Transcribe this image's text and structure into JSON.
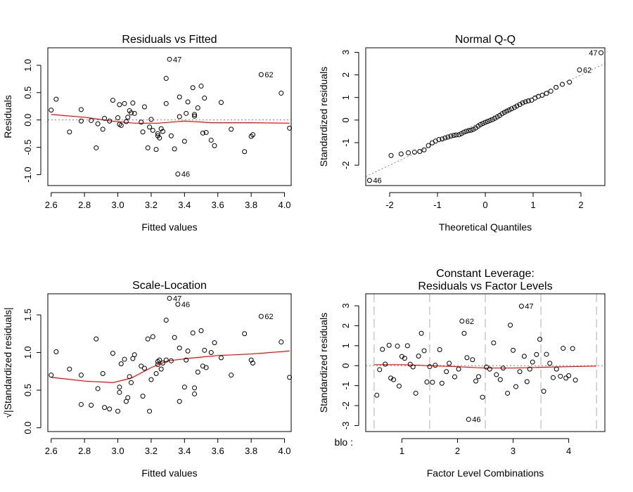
{
  "colors": {
    "smooth": "#ff0000",
    "reference": "#808080",
    "separator": "#c8c8c8",
    "points": "#000000"
  },
  "chart_data": [
    {
      "panel": "residuals-vs-fitted",
      "type": "scatter",
      "title": "Residuals vs Fitted",
      "title2": "",
      "xlabel": "Fitted values",
      "ylabel": "Residuals",
      "xlim": [
        2.58,
        4.04
      ],
      "ylim": [
        -1.2,
        1.32
      ],
      "xticks": [
        2.6,
        2.8,
        3.0,
        3.2,
        3.4,
        3.6,
        3.8,
        4.0
      ],
      "xtick_labels": [
        "2.6",
        "2.8",
        "3.0",
        "3.2",
        "3.4",
        "3.6",
        "3.8",
        "4.0"
      ],
      "yticks": [
        -1.0,
        -0.5,
        0.0,
        0.5,
        1.0
      ],
      "ytick_labels": [
        "-1.0",
        "-0.5",
        "0.0",
        "0.5",
        "1.0"
      ],
      "reference_line": {
        "axis": "y",
        "value": 0
      },
      "points": [
        [
          2.6,
          0.18
        ],
        [
          2.63,
          0.38
        ],
        [
          2.71,
          -0.22
        ],
        [
          2.78,
          0.19
        ],
        [
          2.78,
          -0.02
        ],
        [
          2.84,
          -0.01
        ],
        [
          2.87,
          -0.51
        ],
        [
          2.88,
          -0.07
        ],
        [
          2.91,
          -0.17
        ],
        [
          2.92,
          0.03
        ],
        [
          2.95,
          -0.02
        ],
        [
          2.97,
          0.36
        ],
        [
          3.0,
          0.04
        ],
        [
          3.01,
          0.28
        ],
        [
          3.01,
          -0.08
        ],
        [
          3.02,
          -0.1
        ],
        [
          3.04,
          0.3
        ],
        [
          3.05,
          -0.03
        ],
        [
          3.06,
          0.05
        ],
        [
          3.07,
          0.17
        ],
        [
          3.08,
          0.13
        ],
        [
          3.09,
          0.31
        ],
        [
          3.1,
          0.12
        ],
        [
          3.14,
          -0.04
        ],
        [
          3.15,
          -0.22
        ],
        [
          3.16,
          0.24
        ],
        [
          3.18,
          -0.51
        ],
        [
          3.19,
          -0.13
        ],
        [
          3.2,
          0.01
        ],
        [
          3.21,
          -0.19
        ],
        [
          3.23,
          -0.54
        ],
        [
          3.24,
          -0.25
        ],
        [
          3.24,
          -0.29
        ],
        [
          3.25,
          -0.33
        ],
        [
          3.26,
          -0.16
        ],
        [
          3.27,
          -0.21
        ],
        [
          3.29,
          0.3
        ],
        [
          3.29,
          0.76
        ],
        [
          3.31,
          1.11
        ],
        [
          3.32,
          -0.29
        ],
        [
          3.34,
          -0.53
        ],
        [
          3.36,
          -0.99
        ],
        [
          3.37,
          0.06
        ],
        [
          3.37,
          0.42
        ],
        [
          3.4,
          -0.39
        ],
        [
          3.41,
          0.12
        ],
        [
          3.42,
          0.33
        ],
        [
          3.45,
          0.59
        ],
        [
          3.46,
          0.07
        ],
        [
          3.46,
          0.1
        ],
        [
          3.48,
          0.22
        ],
        [
          3.5,
          0.62
        ],
        [
          3.51,
          -0.24
        ],
        [
          3.52,
          0.4
        ],
        [
          3.53,
          -0.23
        ],
        [
          3.56,
          -0.37
        ],
        [
          3.58,
          -0.47
        ],
        [
          3.62,
          0.32
        ],
        [
          3.68,
          -0.17
        ],
        [
          3.76,
          -0.58
        ],
        [
          3.8,
          -0.3
        ],
        [
          3.81,
          -0.27
        ],
        [
          3.86,
          0.83
        ],
        [
          3.98,
          0.49
        ],
        [
          4.03,
          -0.15
        ]
      ],
      "smooth": [
        [
          2.6,
          0.1
        ],
        [
          2.8,
          0.05
        ],
        [
          2.96,
          -0.02
        ],
        [
          3.1,
          -0.06
        ],
        [
          3.24,
          -0.06
        ],
        [
          3.4,
          -0.02
        ],
        [
          3.56,
          -0.05
        ],
        [
          3.8,
          -0.05
        ],
        [
          4.03,
          -0.06
        ]
      ],
      "labels": [
        {
          "text": "47",
          "x": 3.31,
          "y": 1.11
        },
        {
          "text": "62",
          "x": 3.86,
          "y": 0.83
        },
        {
          "text": "46",
          "x": 3.36,
          "y": -0.99
        }
      ]
    },
    {
      "panel": "normal-qq",
      "type": "scatter",
      "title": "Normal Q-Q",
      "title2": "",
      "xlabel": "Theoretical Quantiles",
      "ylabel": "Standardized residuals",
      "xlim": [
        -2.5,
        2.5
      ],
      "ylim": [
        -2.9,
        3.2
      ],
      "xticks": [
        -2,
        -1,
        0,
        1,
        2
      ],
      "xtick_labels": [
        "-2",
        "-1",
        "0",
        "1",
        "2"
      ],
      "yticks": [
        -2,
        -1,
        0,
        1,
        2,
        3
      ],
      "ytick_labels": [
        "-2",
        "-1",
        "0",
        "1",
        "2",
        "3"
      ],
      "reference_line": {
        "axis": "diag",
        "slope": 1.0,
        "intercept": 0
      },
      "points": [
        [
          -2.42,
          -2.67
        ],
        [
          -1.97,
          -1.57
        ],
        [
          -1.76,
          -1.5
        ],
        [
          -1.61,
          -1.45
        ],
        [
          -1.48,
          -1.42
        ],
        [
          -1.37,
          -1.39
        ],
        [
          -1.28,
          -1.32
        ],
        [
          -1.19,
          -1.13
        ],
        [
          -1.11,
          -1.01
        ],
        [
          -1.04,
          -0.93
        ],
        [
          -0.97,
          -0.86
        ],
        [
          -0.9,
          -0.84
        ],
        [
          -0.84,
          -0.79
        ],
        [
          -0.78,
          -0.75
        ],
        [
          -0.72,
          -0.71
        ],
        [
          -0.66,
          -0.68
        ],
        [
          -0.61,
          -0.66
        ],
        [
          -0.55,
          -0.65
        ],
        [
          -0.5,
          -0.6
        ],
        [
          -0.45,
          -0.54
        ],
        [
          -0.4,
          -0.5
        ],
        [
          -0.35,
          -0.47
        ],
        [
          -0.3,
          -0.45
        ],
        [
          -0.25,
          -0.41
        ],
        [
          -0.2,
          -0.35
        ],
        [
          -0.15,
          -0.27
        ],
        [
          -0.1,
          -0.2
        ],
        [
          -0.05,
          -0.15
        ],
        [
          0.0,
          -0.1
        ],
        [
          0.05,
          -0.06
        ],
        [
          0.1,
          -0.02
        ],
        [
          0.15,
          0.02
        ],
        [
          0.2,
          0.08
        ],
        [
          0.25,
          0.14
        ],
        [
          0.3,
          0.2
        ],
        [
          0.35,
          0.28
        ],
        [
          0.4,
          0.34
        ],
        [
          0.45,
          0.4
        ],
        [
          0.5,
          0.45
        ],
        [
          0.55,
          0.5
        ],
        [
          0.61,
          0.56
        ],
        [
          0.66,
          0.62
        ],
        [
          0.72,
          0.69
        ],
        [
          0.78,
          0.76
        ],
        [
          0.84,
          0.81
        ],
        [
          0.9,
          0.85
        ],
        [
          0.97,
          0.88
        ],
        [
          1.04,
          0.98
        ],
        [
          1.11,
          1.05
        ],
        [
          1.19,
          1.1
        ],
        [
          1.28,
          1.18
        ],
        [
          1.37,
          1.28
        ],
        [
          1.48,
          1.45
        ],
        [
          1.61,
          1.58
        ],
        [
          1.76,
          1.68
        ],
        [
          1.97,
          2.22
        ],
        [
          2.42,
          2.98
        ]
      ],
      "labels": [
        {
          "text": "47",
          "x": 2.42,
          "y": 2.98
        },
        {
          "text": "62",
          "x": 1.97,
          "y": 2.22
        },
        {
          "text": "46",
          "x": -2.42,
          "y": -2.67
        }
      ]
    },
    {
      "panel": "scale-location",
      "type": "scatter",
      "title": "Scale-Location",
      "title2": "",
      "xlabel": "Fitted values",
      "ylabel": "√|Standardized residuals|",
      "xlim": [
        2.58,
        4.04
      ],
      "ylim": [
        -0.05,
        1.78
      ],
      "xticks": [
        2.6,
        2.8,
        3.0,
        3.2,
        3.4,
        3.6,
        3.8,
        4.0
      ],
      "xtick_labels": [
        "2.6",
        "2.8",
        "3.0",
        "3.2",
        "3.4",
        "3.6",
        "3.8",
        "4.0"
      ],
      "yticks": [
        0.0,
        0.5,
        1.0,
        1.5
      ],
      "ytick_labels": [
        "0.0",
        "0.5",
        "1.0",
        "1.5"
      ],
      "points": [
        [
          2.6,
          0.7
        ],
        [
          2.63,
          1.01
        ],
        [
          2.71,
          0.78
        ],
        [
          2.78,
          0.7
        ],
        [
          2.78,
          0.31
        ],
        [
          2.84,
          0.3
        ],
        [
          2.87,
          1.18
        ],
        [
          2.88,
          0.52
        ],
        [
          2.91,
          0.72
        ],
        [
          2.92,
          0.27
        ],
        [
          2.95,
          0.25
        ],
        [
          2.97,
          0.99
        ],
        [
          3.0,
          0.22
        ],
        [
          3.01,
          0.54
        ],
        [
          3.01,
          0.47
        ],
        [
          3.02,
          0.85
        ],
        [
          3.04,
          0.91
        ],
        [
          3.05,
          0.35
        ],
        [
          3.06,
          0.4
        ],
        [
          3.07,
          0.68
        ],
        [
          3.08,
          0.6
        ],
        [
          3.09,
          0.92
        ],
        [
          3.1,
          0.97
        ],
        [
          3.14,
          0.82
        ],
        [
          3.15,
          0.42
        ],
        [
          3.16,
          0.79
        ],
        [
          3.18,
          1.18
        ],
        [
          3.19,
          0.22
        ],
        [
          3.2,
          0.64
        ],
        [
          3.21,
          1.21
        ],
        [
          3.23,
          0.72
        ],
        [
          3.24,
          0.84
        ],
        [
          3.24,
          0.88
        ],
        [
          3.25,
          0.9
        ],
        [
          3.26,
          0.78
        ],
        [
          3.27,
          0.86
        ],
        [
          3.29,
          1.43
        ],
        [
          3.29,
          0.9
        ],
        [
          3.31,
          1.72
        ],
        [
          3.32,
          0.89
        ],
        [
          3.34,
          1.2
        ],
        [
          3.36,
          1.64
        ],
        [
          3.37,
          0.35
        ],
        [
          3.37,
          1.06
        ],
        [
          3.4,
          0.54
        ],
        [
          3.41,
          0.9
        ],
        [
          3.42,
          1.02
        ],
        [
          3.45,
          1.26
        ],
        [
          3.46,
          0.45
        ],
        [
          3.46,
          0.53
        ],
        [
          3.48,
          0.74
        ],
        [
          3.5,
          1.29
        ],
        [
          3.51,
          0.82
        ],
        [
          3.52,
          1.03
        ],
        [
          3.53,
          0.8
        ],
        [
          3.56,
          1.0
        ],
        [
          3.58,
          1.13
        ],
        [
          3.62,
          0.93
        ],
        [
          3.68,
          0.7
        ],
        [
          3.76,
          1.25
        ],
        [
          3.8,
          0.9
        ],
        [
          3.81,
          0.86
        ],
        [
          3.86,
          1.48
        ],
        [
          3.98,
          1.14
        ],
        [
          4.03,
          0.67
        ]
      ],
      "smooth": [
        [
          2.6,
          0.67
        ],
        [
          2.8,
          0.62
        ],
        [
          2.97,
          0.6
        ],
        [
          3.08,
          0.66
        ],
        [
          3.2,
          0.8
        ],
        [
          3.3,
          0.89
        ],
        [
          3.46,
          0.93
        ],
        [
          3.6,
          0.96
        ],
        [
          3.8,
          0.98
        ],
        [
          4.03,
          1.02
        ]
      ],
      "labels": [
        {
          "text": "47",
          "x": 3.31,
          "y": 1.72
        },
        {
          "text": "46",
          "x": 3.36,
          "y": 1.64
        },
        {
          "text": "62",
          "x": 3.86,
          "y": 1.48
        }
      ]
    },
    {
      "panel": "constant-leverage",
      "type": "scatter",
      "title": "Constant Leverage:",
      "title2": "Residuals vs Factor Levels",
      "xlabel": "Factor Level Combinations",
      "ylabel": "Standardized residuals",
      "factor_label": "blo :",
      "xlim": [
        0.35,
        4.65
      ],
      "ylim": [
        -3.3,
        3.6
      ],
      "xticks": [
        1,
        2,
        3,
        4
      ],
      "xtick_labels": [
        "1",
        "2",
        "3",
        "4"
      ],
      "yticks": [
        -3,
        -2,
        -1,
        0,
        1,
        2,
        3
      ],
      "ytick_labels": [
        "-3",
        "-2",
        "-1",
        "0",
        "1",
        "2",
        "3"
      ],
      "reference_line": {
        "axis": "y",
        "value": 0
      },
      "separators": [
        0.5,
        1.5,
        2.5,
        3.5,
        4.5
      ],
      "points": [
        [
          0.55,
          -1.48
        ],
        [
          0.6,
          -0.2
        ],
        [
          0.65,
          0.82
        ],
        [
          0.7,
          0.08
        ],
        [
          0.77,
          1.02
        ],
        [
          0.8,
          -0.62
        ],
        [
          0.85,
          -0.7
        ],
        [
          0.92,
          0.98
        ],
        [
          0.95,
          -1.02
        ],
        [
          1.0,
          0.46
        ],
        [
          1.05,
          0.37
        ],
        [
          1.1,
          1.0
        ],
        [
          1.15,
          0.07
        ],
        [
          1.2,
          -0.06
        ],
        [
          1.25,
          -1.38
        ],
        [
          1.3,
          0.48
        ],
        [
          1.35,
          1.62
        ],
        [
          1.4,
          0.75
        ],
        [
          1.45,
          -0.82
        ],
        [
          1.5,
          -0.05
        ],
        [
          1.55,
          -0.83
        ],
        [
          1.6,
          0.02
        ],
        [
          1.68,
          0.8
        ],
        [
          1.72,
          -0.88
        ],
        [
          1.8,
          -0.3
        ],
        [
          1.85,
          0.12
        ],
        [
          1.95,
          -0.56
        ],
        [
          2.02,
          -0.17
        ],
        [
          2.08,
          2.23
        ],
        [
          2.12,
          1.62
        ],
        [
          2.17,
          0.4
        ],
        [
          2.2,
          -2.69
        ],
        [
          2.27,
          0.3
        ],
        [
          2.33,
          -0.77
        ],
        [
          2.38,
          -0.55
        ],
        [
          2.45,
          -1.58
        ],
        [
          2.52,
          -0.07
        ],
        [
          2.58,
          -0.17
        ],
        [
          2.65,
          1.14
        ],
        [
          2.7,
          -0.45
        ],
        [
          2.77,
          -0.7
        ],
        [
          2.82,
          -0.12
        ],
        [
          2.9,
          -1.38
        ],
        [
          2.95,
          2.03
        ],
        [
          3.0,
          0.77
        ],
        [
          3.05,
          -1.05
        ],
        [
          3.12,
          -0.3
        ],
        [
          3.15,
          2.98
        ],
        [
          3.2,
          0.47
        ],
        [
          3.25,
          -0.8
        ],
        [
          3.3,
          -0.17
        ],
        [
          3.35,
          0.18
        ],
        [
          3.42,
          0.56
        ],
        [
          3.48,
          1.32
        ],
        [
          3.55,
          -1.28
        ],
        [
          3.6,
          0.57
        ],
        [
          3.66,
          0.12
        ],
        [
          3.72,
          -0.6
        ],
        [
          3.78,
          -0.17
        ],
        [
          3.85,
          -0.53
        ],
        [
          3.9,
          0.87
        ],
        [
          3.95,
          -0.62
        ],
        [
          4.0,
          -0.5
        ],
        [
          4.07,
          0.86
        ],
        [
          4.12,
          -0.72
        ]
      ],
      "smooth": [
        [
          0.5,
          0.05
        ],
        [
          1.0,
          0.05
        ],
        [
          1.5,
          0.0
        ],
        [
          2.0,
          -0.05
        ],
        [
          2.5,
          -0.12
        ],
        [
          3.0,
          -0.12
        ],
        [
          3.5,
          -0.08
        ],
        [
          4.0,
          -0.05
        ],
        [
          4.5,
          -0.02
        ]
      ],
      "labels": [
        {
          "text": "62",
          "x": 2.08,
          "y": 2.23
        },
        {
          "text": "47",
          "x": 3.15,
          "y": 2.98
        },
        {
          "text": "46",
          "x": 2.2,
          "y": -2.69
        }
      ]
    }
  ]
}
